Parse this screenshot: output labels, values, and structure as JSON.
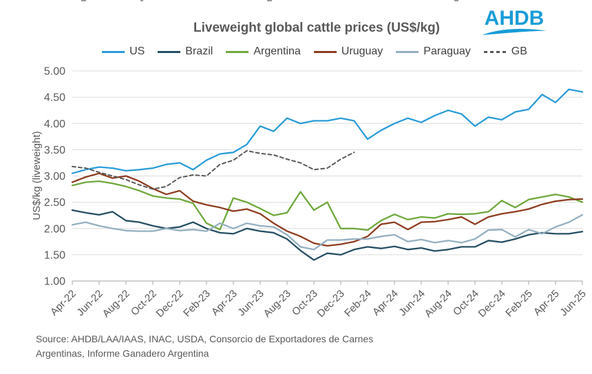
{
  "header": {
    "logo_text": "AHDB",
    "logo_color": "#189cd8"
  },
  "source": {
    "line1": "Source: AHDB/LAA/IAAS, INAC, USDA, Consorcio de Exportadores de Carnes",
    "line2": "Argentinas, Informe Ganadero Argentina"
  },
  "chart_data": {
    "type": "line",
    "title": "Liveweight global cattle prices (US$/kg)",
    "xlabel": "",
    "ylabel": "US$/kg (liveweight)",
    "ylim": [
      1.0,
      5.0
    ],
    "grid": true,
    "legend_position": "top",
    "y_ticks": [
      1.0,
      1.5,
      2.0,
      2.5,
      3.0,
      3.5,
      4.0,
      4.5,
      5.0
    ],
    "x_tick_labels": [
      "Apr-22",
      "Jun-22",
      "Aug-22",
      "Oct-22",
      "Dec-22",
      "Feb-23",
      "Apr-23",
      "Jun-23",
      "Aug-23",
      "Oct-23",
      "Dec-23",
      "Feb-24",
      "Apr-24",
      "Jun-24",
      "Aug-24",
      "Oct-24",
      "Dec-24",
      "Feb-25",
      "Apr-25",
      "Jun-25"
    ],
    "months": [
      "Apr-22",
      "May-22",
      "Jun-22",
      "Jul-22",
      "Aug-22",
      "Sep-22",
      "Oct-22",
      "Nov-22",
      "Dec-22",
      "Jan-23",
      "Feb-23",
      "Mar-23",
      "Apr-23",
      "May-23",
      "Jun-23",
      "Jul-23",
      "Aug-23",
      "Sep-23",
      "Oct-23",
      "Nov-23",
      "Dec-23",
      "Jan-24",
      "Feb-24",
      "Mar-24",
      "Apr-24",
      "May-24",
      "Jun-24",
      "Jul-24",
      "Aug-24",
      "Sep-24",
      "Oct-24",
      "Nov-24",
      "Dec-24",
      "Jan-25",
      "Feb-25",
      "Mar-25",
      "Apr-25",
      "May-25",
      "Jun-25"
    ],
    "series": [
      {
        "name": "US",
        "color": "#2b9cd8",
        "dashed": false,
        "values": [
          3.05,
          3.12,
          3.17,
          3.15,
          3.1,
          3.12,
          3.15,
          3.22,
          3.25,
          3.12,
          3.3,
          3.42,
          3.45,
          3.6,
          3.95,
          3.85,
          4.1,
          4.0,
          4.05,
          4.05,
          4.1,
          4.05,
          3.7,
          3.87,
          4.0,
          4.1,
          4.02,
          4.15,
          4.25,
          4.18,
          3.95,
          4.12,
          4.07,
          4.22,
          4.27,
          4.55,
          4.4,
          4.65,
          4.6
        ]
      },
      {
        "name": "Brazil",
        "color": "#264f63",
        "dashed": false,
        "values": [
          2.35,
          2.3,
          2.26,
          2.32,
          2.15,
          2.12,
          2.05,
          2.0,
          2.03,
          2.12,
          2.0,
          1.92,
          1.9,
          2.0,
          1.95,
          1.92,
          1.8,
          1.58,
          1.4,
          1.53,
          1.5,
          1.6,
          1.65,
          1.62,
          1.66,
          1.6,
          1.63,
          1.57,
          1.6,
          1.65,
          1.65,
          1.77,
          1.74,
          1.8,
          1.88,
          1.92,
          1.9,
          1.9,
          1.94
        ]
      },
      {
        "name": "Argentina",
        "color": "#6fa83c",
        "dashed": false,
        "values": [
          2.82,
          2.88,
          2.9,
          2.86,
          2.8,
          2.72,
          2.62,
          2.58,
          2.56,
          2.48,
          2.1,
          1.98,
          2.58,
          2.5,
          2.38,
          2.25,
          2.3,
          2.7,
          2.35,
          2.5,
          2.0,
          2.0,
          1.97,
          2.15,
          2.27,
          2.17,
          2.22,
          2.2,
          2.28,
          2.27,
          2.28,
          2.32,
          2.53,
          2.4,
          2.55,
          2.6,
          2.65,
          2.6,
          2.5
        ]
      },
      {
        "name": "Uruguay",
        "color": "#8e3c20",
        "dashed": false,
        "values": [
          2.88,
          2.98,
          3.05,
          2.96,
          3.0,
          2.9,
          2.76,
          2.65,
          2.72,
          2.52,
          2.45,
          2.4,
          2.33,
          2.37,
          2.28,
          2.1,
          1.95,
          1.85,
          1.72,
          1.67,
          1.7,
          1.75,
          1.85,
          2.08,
          2.12,
          1.98,
          2.12,
          2.13,
          2.17,
          2.22,
          2.08,
          2.22,
          2.28,
          2.32,
          2.37,
          2.46,
          2.52,
          2.55,
          2.56
        ]
      },
      {
        "name": "Paraguay",
        "color": "#94b0c0",
        "dashed": false,
        "values": [
          2.07,
          2.12,
          2.05,
          2.0,
          1.96,
          1.95,
          1.95,
          2.0,
          1.96,
          1.98,
          1.95,
          2.1,
          2.0,
          2.1,
          2.05,
          2.03,
          1.88,
          1.65,
          1.6,
          1.78,
          1.78,
          1.8,
          1.8,
          1.85,
          1.88,
          1.75,
          1.79,
          1.73,
          1.77,
          1.73,
          1.8,
          1.97,
          1.98,
          1.84,
          1.98,
          1.9,
          2.03,
          2.12,
          2.26
        ]
      },
      {
        "name": "GB",
        "color": "#595959",
        "dashed": true,
        "values": [
          3.18,
          3.15,
          3.07,
          3.0,
          2.93,
          2.83,
          2.75,
          2.8,
          2.97,
          3.02,
          3.0,
          3.22,
          3.3,
          3.48,
          3.43,
          3.4,
          3.32,
          3.25,
          3.12,
          3.15,
          3.32,
          3.45,
          null,
          null,
          null,
          null,
          null,
          null,
          null,
          null,
          null,
          null,
          null,
          null,
          null,
          null,
          null,
          null,
          null
        ]
      }
    ]
  }
}
